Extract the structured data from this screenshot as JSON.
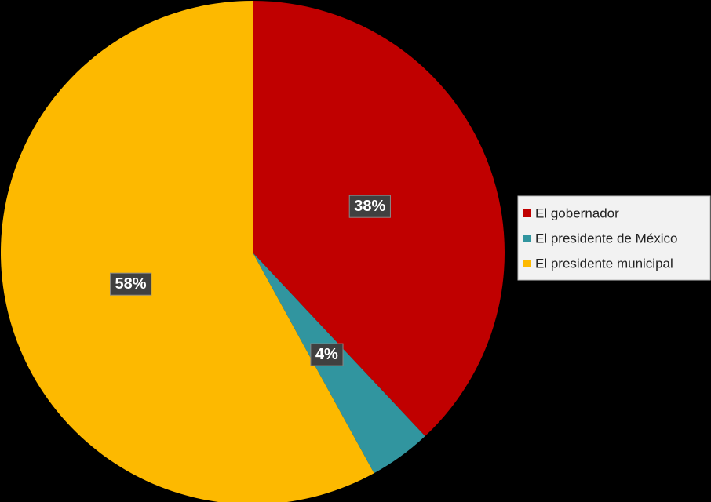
{
  "chart_data": {
    "type": "pie",
    "categories": [
      "El gobernador",
      "El presidente de México",
      "El presidente municipal"
    ],
    "values": [
      38,
      4,
      58
    ],
    "value_labels": [
      "38%",
      "4%",
      "58%"
    ],
    "colors": [
      "#c00000",
      "#31959f",
      "#fdb900"
    ],
    "legend": "right"
  }
}
